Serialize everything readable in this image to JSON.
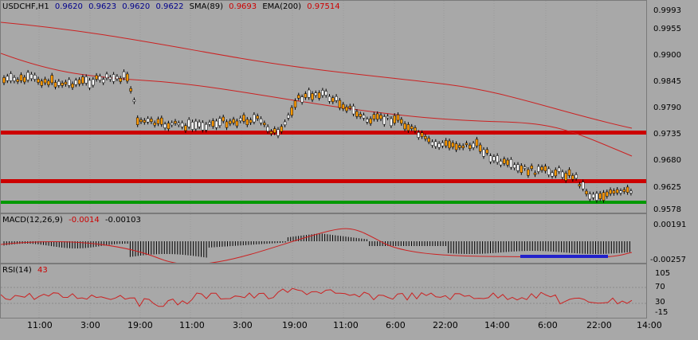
{
  "main": {
    "symbol": "USDCHF,H1",
    "ohlc": [
      "0.9620",
      "0.9623",
      "0.9620",
      "0.9622"
    ],
    "sma_label": "SMA(89)",
    "sma_value": "0.9693",
    "ema_label": "EMA(200)",
    "ema_value": "0.97514",
    "price_ticks": [
      "0.9993",
      "0.9955",
      "0.9900",
      "0.9845",
      "0.9790",
      "0.9735",
      "0.9680",
      "0.9625",
      "0.9578"
    ]
  },
  "macd": {
    "label": "MACD(12,26,9)",
    "value1": "-0.0014",
    "value2": "-0.00103",
    "ticks": [
      "0.00191",
      "-0.00257"
    ]
  },
  "rsi": {
    "label": "RSI(14)",
    "value": "43",
    "ticks": [
      "105",
      "70",
      "30",
      "-15"
    ]
  },
  "time_axis": [
    "11:00",
    "3:00",
    "19:00",
    "11:00",
    "3:00",
    "19:00",
    "11:00",
    "6:00",
    "22:00",
    "14:00",
    "6:00",
    "22:00",
    "14:00"
  ],
  "colors": {
    "bg": "#a8a8a8",
    "bull": "#ffffff",
    "bear": "#ff9900",
    "ma": "#cc2222",
    "support_green": "#009900",
    "level_red": "#cc0000",
    "blue_mark": "#2222cc"
  }
}
